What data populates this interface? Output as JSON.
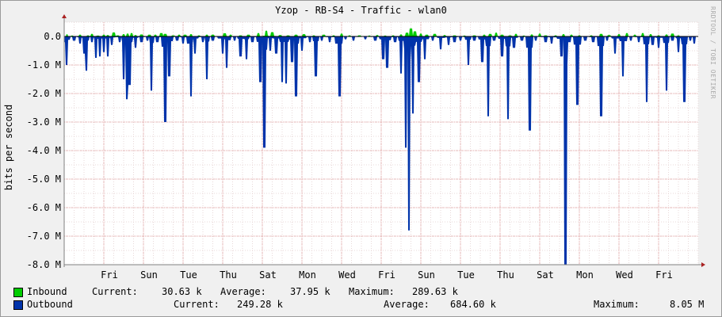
{
  "colors": {
    "inbound": "#00cc00",
    "outbound": "#0033aa",
    "background": "#f0f0f0",
    "canvas": "#ffffff",
    "grid_major": "#e0a0a0",
    "grid_minor": "#e8d8d8",
    "axis": "#808080",
    "arrow": "#aa2222"
  },
  "chart_data": {
    "type": "area",
    "title": "Yzop - RB-S4 - Traffic - wlan0",
    "ylabel": "bits per second",
    "watermark": "RRDTOOL / TOBI OETIKER",
    "ylim": [
      -8000000,
      500000
    ],
    "y_ticks": [
      {
        "value": 0,
        "label": "0.0"
      },
      {
        "value": -1000000,
        "label": "-1.0 M"
      },
      {
        "value": -2000000,
        "label": "-2.0 M"
      },
      {
        "value": -3000000,
        "label": "-3.0 M"
      },
      {
        "value": -4000000,
        "label": "-4.0 M"
      },
      {
        "value": -5000000,
        "label": "-5.0 M"
      },
      {
        "value": -6000000,
        "label": "-6.0 M"
      },
      {
        "value": -7000000,
        "label": "-7.0 M"
      },
      {
        "value": -8000000,
        "label": "-8.0 M"
      }
    ],
    "x_unit": "days",
    "x_range": [
      0,
      16
    ],
    "x_ticks": [
      {
        "value": 1,
        "label": "Fri"
      },
      {
        "value": 2,
        "label": "Sun"
      },
      {
        "value": 3,
        "label": "Tue"
      },
      {
        "value": 4,
        "label": "Thu"
      },
      {
        "value": 5,
        "label": "Sat"
      },
      {
        "value": 6,
        "label": "Mon"
      },
      {
        "value": 7,
        "label": "Wed"
      },
      {
        "value": 8,
        "label": "Fri"
      },
      {
        "value": 9,
        "label": "Sun"
      },
      {
        "value": 10,
        "label": "Tue"
      },
      {
        "value": 11,
        "label": "Thu"
      },
      {
        "value": 12,
        "label": "Sat"
      },
      {
        "value": 13,
        "label": "Mon"
      },
      {
        "value": 14,
        "label": "Wed"
      },
      {
        "value": 15,
        "label": "Fri"
      }
    ],
    "legend_placement": "bottom",
    "series": [
      {
        "name": "Inbound",
        "sign": "positive",
        "points": [
          [
            0.05,
            80000
          ],
          [
            0.2,
            30000
          ],
          [
            0.4,
            60000
          ],
          [
            0.6,
            40000
          ],
          [
            0.7,
            90000
          ],
          [
            0.85,
            30000
          ],
          [
            1.0,
            60000
          ],
          [
            1.1,
            50000
          ],
          [
            1.25,
            140000
          ],
          [
            1.35,
            40000
          ],
          [
            1.5,
            80000
          ],
          [
            1.6,
            100000
          ],
          [
            1.7,
            120000
          ],
          [
            1.8,
            50000
          ],
          [
            1.95,
            70000
          ],
          [
            2.15,
            60000
          ],
          [
            2.3,
            60000
          ],
          [
            2.45,
            120000
          ],
          [
            2.55,
            90000
          ],
          [
            2.75,
            40000
          ],
          [
            2.9,
            60000
          ],
          [
            3.05,
            60000
          ],
          [
            3.2,
            80000
          ],
          [
            3.4,
            40000
          ],
          [
            3.6,
            60000
          ],
          [
            3.75,
            60000
          ],
          [
            4.05,
            110000
          ],
          [
            4.2,
            60000
          ],
          [
            4.45,
            40000
          ],
          [
            4.65,
            60000
          ],
          [
            4.9,
            120000
          ],
          [
            5.1,
            200000
          ],
          [
            5.25,
            150000
          ],
          [
            5.45,
            50000
          ],
          [
            5.65,
            40000
          ],
          [
            5.85,
            60000
          ],
          [
            6.05,
            80000
          ],
          [
            6.3,
            40000
          ],
          [
            6.55,
            60000
          ],
          [
            6.8,
            40000
          ],
          [
            7.0,
            100000
          ],
          [
            7.2,
            40000
          ],
          [
            7.45,
            40000
          ],
          [
            7.7,
            30000
          ],
          [
            7.9,
            50000
          ],
          [
            8.1,
            30000
          ],
          [
            8.3,
            40000
          ],
          [
            8.5,
            70000
          ],
          [
            8.65,
            130000
          ],
          [
            8.75,
            280000
          ],
          [
            8.85,
            180000
          ],
          [
            9.0,
            100000
          ],
          [
            9.15,
            60000
          ],
          [
            9.35,
            90000
          ],
          [
            9.6,
            50000
          ],
          [
            9.85,
            40000
          ],
          [
            10.1,
            30000
          ],
          [
            10.35,
            40000
          ],
          [
            10.6,
            60000
          ],
          [
            10.75,
            90000
          ],
          [
            10.9,
            130000
          ],
          [
            11.05,
            60000
          ],
          [
            11.25,
            40000
          ],
          [
            11.4,
            90000
          ],
          [
            11.6,
            30000
          ],
          [
            11.8,
            70000
          ],
          [
            12.0,
            100000
          ],
          [
            12.15,
            40000
          ],
          [
            12.4,
            40000
          ],
          [
            12.6,
            80000
          ],
          [
            12.8,
            60000
          ],
          [
            13.0,
            40000
          ],
          [
            13.3,
            40000
          ],
          [
            13.55,
            90000
          ],
          [
            13.75,
            50000
          ],
          [
            14.0,
            80000
          ],
          [
            14.2,
            120000
          ],
          [
            14.4,
            60000
          ],
          [
            14.6,
            120000
          ],
          [
            14.8,
            80000
          ],
          [
            15.0,
            40000
          ],
          [
            15.2,
            70000
          ],
          [
            15.35,
            100000
          ],
          [
            15.5,
            40000
          ]
        ]
      },
      {
        "name": "Outbound",
        "sign": "negative",
        "points": [
          [
            0.0,
            -200000
          ],
          [
            0.05,
            -1000000
          ],
          [
            0.25,
            -150000
          ],
          [
            0.4,
            -250000
          ],
          [
            0.5,
            -600000
          ],
          [
            0.55,
            -1200000
          ],
          [
            0.7,
            -200000
          ],
          [
            0.8,
            -750000
          ],
          [
            0.9,
            -700000
          ],
          [
            1.0,
            -550000
          ],
          [
            1.1,
            -700000
          ],
          [
            1.2,
            -300000
          ],
          [
            1.4,
            -200000
          ],
          [
            1.5,
            -1500000
          ],
          [
            1.58,
            -2200000
          ],
          [
            1.65,
            -1700000
          ],
          [
            1.8,
            -400000
          ],
          [
            1.95,
            -200000
          ],
          [
            2.1,
            -150000
          ],
          [
            2.2,
            -1900000
          ],
          [
            2.35,
            -200000
          ],
          [
            2.55,
            -3000000
          ],
          [
            2.65,
            -1400000
          ],
          [
            2.85,
            -150000
          ],
          [
            3.0,
            -250000
          ],
          [
            3.2,
            -2100000
          ],
          [
            3.3,
            -600000
          ],
          [
            3.5,
            -200000
          ],
          [
            3.6,
            -1500000
          ],
          [
            3.75,
            -150000
          ],
          [
            4.0,
            -600000
          ],
          [
            4.1,
            -1100000
          ],
          [
            4.3,
            -150000
          ],
          [
            4.45,
            -700000
          ],
          [
            4.6,
            -800000
          ],
          [
            4.75,
            -200000
          ],
          [
            4.95,
            -1600000
          ],
          [
            5.05,
            -3900000
          ],
          [
            5.2,
            -500000
          ],
          [
            5.35,
            -600000
          ],
          [
            5.5,
            -1600000
          ],
          [
            5.6,
            -1650000
          ],
          [
            5.75,
            -900000
          ],
          [
            5.85,
            -2100000
          ],
          [
            6.0,
            -500000
          ],
          [
            6.2,
            -200000
          ],
          [
            6.35,
            -1400000
          ],
          [
            6.5,
            -150000
          ],
          [
            6.7,
            -200000
          ],
          [
            6.95,
            -2100000
          ],
          [
            7.1,
            -100000
          ],
          [
            7.3,
            -150000
          ],
          [
            7.6,
            -100000
          ],
          [
            7.85,
            -150000
          ],
          [
            8.05,
            -800000
          ],
          [
            8.15,
            -1100000
          ],
          [
            8.35,
            -200000
          ],
          [
            8.5,
            -1300000
          ],
          [
            8.62,
            -3900000
          ],
          [
            8.7,
            -6800000
          ],
          [
            8.8,
            -2700000
          ],
          [
            8.95,
            -1600000
          ],
          [
            9.1,
            -800000
          ],
          [
            9.3,
            -150000
          ],
          [
            9.5,
            -450000
          ],
          [
            9.7,
            -300000
          ],
          [
            9.85,
            -200000
          ],
          [
            10.0,
            -150000
          ],
          [
            10.2,
            -1000000
          ],
          [
            10.35,
            -150000
          ],
          [
            10.55,
            -900000
          ],
          [
            10.7,
            -2800000
          ],
          [
            10.85,
            -150000
          ],
          [
            11.05,
            -700000
          ],
          [
            11.2,
            -2900000
          ],
          [
            11.35,
            -400000
          ],
          [
            11.55,
            -150000
          ],
          [
            11.75,
            -3300000
          ],
          [
            11.9,
            -150000
          ],
          [
            12.15,
            -200000
          ],
          [
            12.3,
            -250000
          ],
          [
            12.55,
            -700000
          ],
          [
            12.65,
            -8000000
          ],
          [
            12.75,
            -200000
          ],
          [
            12.95,
            -2400000
          ],
          [
            13.15,
            -150000
          ],
          [
            13.35,
            -200000
          ],
          [
            13.55,
            -2800000
          ],
          [
            13.7,
            -150000
          ],
          [
            13.9,
            -600000
          ],
          [
            14.1,
            -1400000
          ],
          [
            14.3,
            -150000
          ],
          [
            14.5,
            -200000
          ],
          [
            14.7,
            -2300000
          ],
          [
            14.85,
            -300000
          ],
          [
            15.0,
            -400000
          ],
          [
            15.2,
            -1900000
          ],
          [
            15.35,
            -150000
          ],
          [
            15.5,
            -550000
          ],
          [
            15.65,
            -2300000
          ],
          [
            15.8,
            -150000
          ],
          [
            15.9,
            -250000
          ]
        ]
      }
    ]
  },
  "legend": {
    "inbound": {
      "name": "Inbound",
      "current_label": "Current:",
      "current_value": "30.63 k",
      "average_label": "Average:",
      "average_value": "37.95 k",
      "maximum_label": "Maximum:",
      "maximum_value": "289.63 k"
    },
    "outbound": {
      "name": "Outbound",
      "current_label": "Current:",
      "current_value": "249.28 k",
      "average_label": "Average:",
      "average_value": "684.60 k",
      "maximum_label": "Maximum:",
      "maximum_value": "8.05 M"
    }
  }
}
